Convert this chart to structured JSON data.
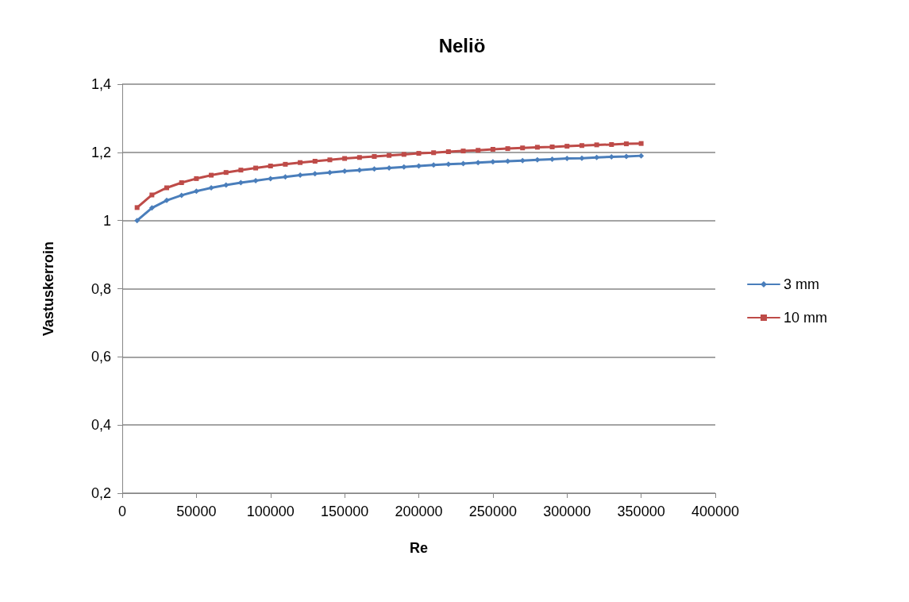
{
  "chart_data": {
    "type": "line",
    "title": "Neliö",
    "xlabel": "Re",
    "ylabel": "Vastuskerroin",
    "x": [
      10000,
      20000,
      30000,
      40000,
      50000,
      60000,
      70000,
      80000,
      90000,
      100000,
      110000,
      120000,
      130000,
      140000,
      150000,
      160000,
      170000,
      180000,
      190000,
      200000,
      210000,
      220000,
      230000,
      240000,
      250000,
      260000,
      270000,
      280000,
      290000,
      300000,
      310000,
      320000,
      330000,
      340000,
      350000
    ],
    "series": [
      {
        "name": "3 mm",
        "color": "#4a7ebb",
        "marker": "diamond",
        "values": [
          1.0,
          1.037,
          1.059,
          1.074,
          1.086,
          1.096,
          1.104,
          1.111,
          1.117,
          1.123,
          1.128,
          1.133,
          1.137,
          1.141,
          1.145,
          1.148,
          1.151,
          1.154,
          1.157,
          1.16,
          1.163,
          1.165,
          1.167,
          1.17,
          1.172,
          1.174,
          1.176,
          1.178,
          1.18,
          1.182,
          1.183,
          1.185,
          1.187,
          1.188,
          1.19
        ]
      },
      {
        "name": "10 mm",
        "color": "#be4b48",
        "marker": "square",
        "values": [
          1.038,
          1.075,
          1.096,
          1.111,
          1.123,
          1.133,
          1.141,
          1.148,
          1.154,
          1.16,
          1.165,
          1.17,
          1.174,
          1.178,
          1.182,
          1.185,
          1.188,
          1.191,
          1.194,
          1.197,
          1.199,
          1.202,
          1.204,
          1.206,
          1.209,
          1.211,
          1.213,
          1.215,
          1.216,
          1.218,
          1.22,
          1.222,
          1.223,
          1.225,
          1.226
        ]
      }
    ],
    "xlim": [
      0,
      400000
    ],
    "xticks": [
      0,
      50000,
      100000,
      150000,
      200000,
      250000,
      300000,
      350000,
      400000
    ],
    "ylim": [
      0.2,
      1.4
    ],
    "yticks": [
      {
        "value": 0.2,
        "label": "0,2"
      },
      {
        "value": 0.4,
        "label": "0,4"
      },
      {
        "value": 0.6,
        "label": "0,6"
      },
      {
        "value": 0.8,
        "label": "0,8"
      },
      1,
      {
        "value": 1.2,
        "label": "1,2"
      },
      {
        "value": 1.4,
        "label": "1,4"
      }
    ],
    "grid": "y",
    "legend": "right",
    "line_style": "solid"
  }
}
